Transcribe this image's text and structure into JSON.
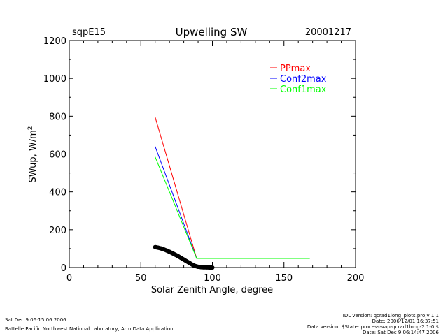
{
  "header": {
    "site": "sqpE15",
    "title": "Upwelling SW",
    "date": "20001217"
  },
  "footer": {
    "left_line1": "Sat Dec  9 06:15:06 2006",
    "left_line2": "Battelle Pacific Northwest National Laboratory, Arm Data Application",
    "right_line1": "IDL version: qcrad1long_plots.pro,v 1.1",
    "right_line2": "Date: 2006/12/01 16:37:51",
    "right_line3": "Data version: $State: process-vap-qcrad1long-2.1-0 $",
    "right_line4": "Date: Sat Dec  9 06:14:47 2006"
  },
  "chart_data": {
    "type": "line",
    "xlabel": "Solar Zenith Angle, degree",
    "ylabel": "SWup, W/m",
    "ylabel_sup": "2",
    "xlim": [
      0,
      200
    ],
    "ylim": [
      0,
      1200
    ],
    "xticks": [
      0,
      50,
      100,
      150,
      200
    ],
    "yticks": [
      0,
      200,
      400,
      600,
      800,
      1000,
      1200
    ],
    "grid": false,
    "legend_position": "top-right",
    "series": [
      {
        "name": "PPmax",
        "color": "#ff0000",
        "x": [
          60,
          89,
          168
        ],
        "y": [
          795,
          48,
          48
        ]
      },
      {
        "name": "Conf2max",
        "color": "#0000ff",
        "x": [
          60,
          89,
          168
        ],
        "y": [
          640,
          48,
          48
        ]
      },
      {
        "name": "Conf1max",
        "color": "#00ff00",
        "x": [
          60,
          89,
          168
        ],
        "y": [
          585,
          48,
          48
        ]
      }
    ],
    "observations": {
      "color": "#000000",
      "x": [
        60,
        62,
        64,
        66,
        68,
        70,
        72,
        74,
        76,
        78,
        80,
        82,
        84,
        86,
        88,
        90,
        92,
        94,
        96,
        98,
        100
      ],
      "y": [
        108,
        105,
        101,
        96,
        90,
        83,
        76,
        68,
        60,
        51,
        42,
        33,
        24,
        15,
        8,
        4,
        2,
        1,
        1,
        0,
        0
      ]
    }
  }
}
